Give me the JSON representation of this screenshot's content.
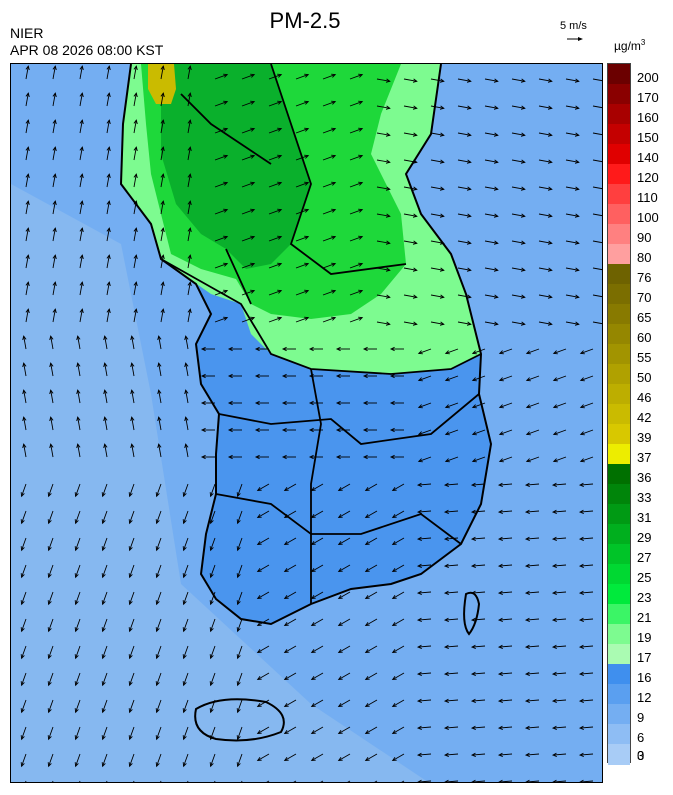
{
  "header": {
    "title": "PM-2.5",
    "agency": "NIER",
    "datetime": "APR 08 2026 08:00 KST",
    "wind_scale_label": "5 m/s",
    "unit_base": "µg/m",
    "unit_exp": "3"
  },
  "legend": {
    "labels": [
      "200",
      "170",
      "160",
      "150",
      "140",
      "120",
      "110",
      "100",
      "90",
      "80",
      "76",
      "70",
      "65",
      "60",
      "55",
      "50",
      "46",
      "42",
      "39",
      "37",
      "36",
      "33",
      "31",
      "29",
      "27",
      "25",
      "23",
      "21",
      "19",
      "17",
      "16",
      "12",
      "9",
      "6",
      "3",
      "0"
    ],
    "colors": [
      "#6b0000",
      "#8a0000",
      "#a80000",
      "#c40000",
      "#e00000",
      "#ff1a1a",
      "#ff3f3f",
      "#ff6060",
      "#ff8080",
      "#ff9f9f",
      "#6e6200",
      "#7b6e00",
      "#887a00",
      "#958700",
      "#a29400",
      "#b0a100",
      "#bdae00",
      "#cabb00",
      "#d8c800",
      "#eded00",
      "#007000",
      "#00850a",
      "#009a14",
      "#00af1e",
      "#00c428",
      "#00d832",
      "#00ea3c",
      "#3bf566",
      "#7dfb90",
      "#aafbb2",
      "#3f8fee",
      "#5a9ff0",
      "#74aef2",
      "#8ebdf4",
      "#a8ccf6"
    ]
  },
  "map": {
    "colors": {
      "sea": "#74aef2",
      "sea_far": "#86b8f0",
      "land_blue": "#4a95ee",
      "green_light": "#7dfb90",
      "green": "#1ed83a",
      "green_dark": "#0ab02c",
      "yellow": "#cabb00"
    }
  }
}
